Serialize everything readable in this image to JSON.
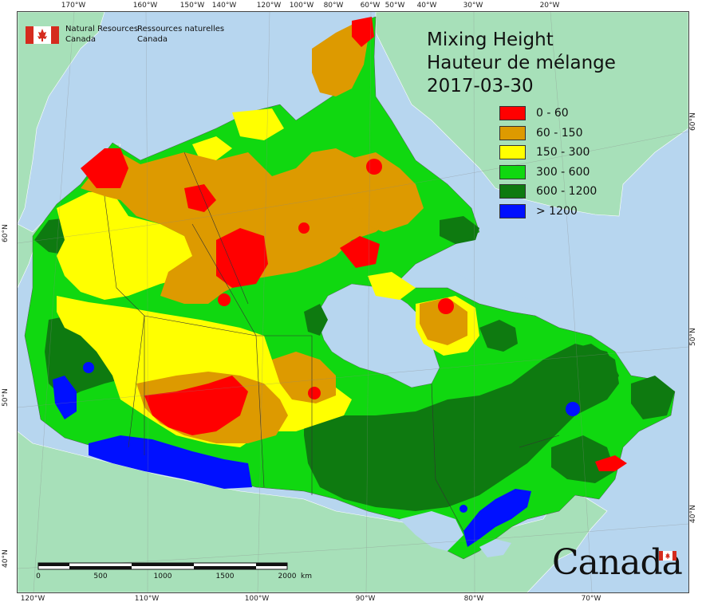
{
  "title": {
    "line1": "Mixing Height",
    "line2": "Hauteur de mélange",
    "date": "2017-03-30"
  },
  "legend": [
    {
      "label": "0 - 60",
      "color": "#ff0000"
    },
    {
      "label": "60 - 150",
      "color": "#dd9a00"
    },
    {
      "label": "150 - 300",
      "color": "#ffff00"
    },
    {
      "label": "300 - 600",
      "color": "#10d810"
    },
    {
      "label": "600 - 1200",
      "color": "#0e7a10"
    },
    {
      "label": "> 1200",
      "color": "#0010ff"
    }
  ],
  "agency": {
    "en_line1": "Natural Resources",
    "en_line2": "Canada",
    "fr_line1": "Ressources naturelles",
    "fr_line2": "Canada"
  },
  "wordmark": "Canada",
  "scale": {
    "labels": [
      "0",
      "500",
      "1000",
      "1500",
      "2000"
    ],
    "unit": "km"
  },
  "top_lon_labels": [
    "170°W",
    "160°W",
    "150°W",
    "140°W",
    "120°W",
    "100°W",
    "80°W",
    "60°W",
    "50°W",
    "40°W",
    "30°W",
    "20°W"
  ],
  "bottom_lon_labels": [
    "120°W",
    "110°W",
    "100°W",
    "90°W",
    "80°W",
    "70°W"
  ],
  "left_lat_labels": [
    "60°N",
    "50°N",
    "40°N"
  ],
  "right_lat_labels": [
    "60°N",
    "50°N",
    "40°N"
  ],
  "colors": {
    "water": "#b7d6ef",
    "foreign_land": "#a7e0b9",
    "border": "#333333"
  }
}
